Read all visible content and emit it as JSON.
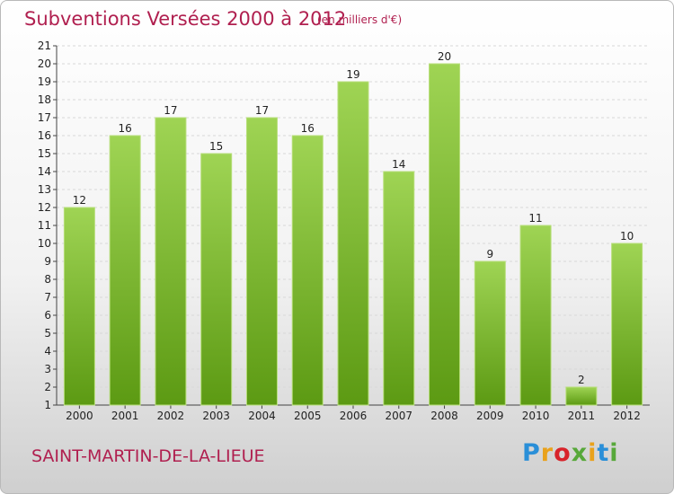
{
  "header": {
    "title": "Subventions Versées 2000 à 2012",
    "unit_note": "(en milliers d'€)"
  },
  "footer": {
    "commune": "SAINT-MARTIN-DE-LA-LIEUE",
    "logo_text": "Proxiti"
  },
  "chart_data": {
    "type": "bar",
    "categories": [
      "2000",
      "2001",
      "2002",
      "2003",
      "2004",
      "2005",
      "2006",
      "2007",
      "2008",
      "2009",
      "2010",
      "2011",
      "2012"
    ],
    "values": [
      12,
      16,
      17,
      15,
      17,
      16,
      19,
      14,
      20,
      9,
      11,
      2,
      10
    ],
    "ylim": [
      1,
      21
    ],
    "yticks": [
      1,
      2,
      3,
      4,
      5,
      6,
      7,
      8,
      9,
      10,
      11,
      12,
      13,
      14,
      15,
      16,
      17,
      18,
      19,
      20,
      21
    ],
    "grid": true,
    "bar_color": "#7fbf2e",
    "bar_color_light": "#9fd454",
    "bar_color_dark": "#5c9a13"
  }
}
